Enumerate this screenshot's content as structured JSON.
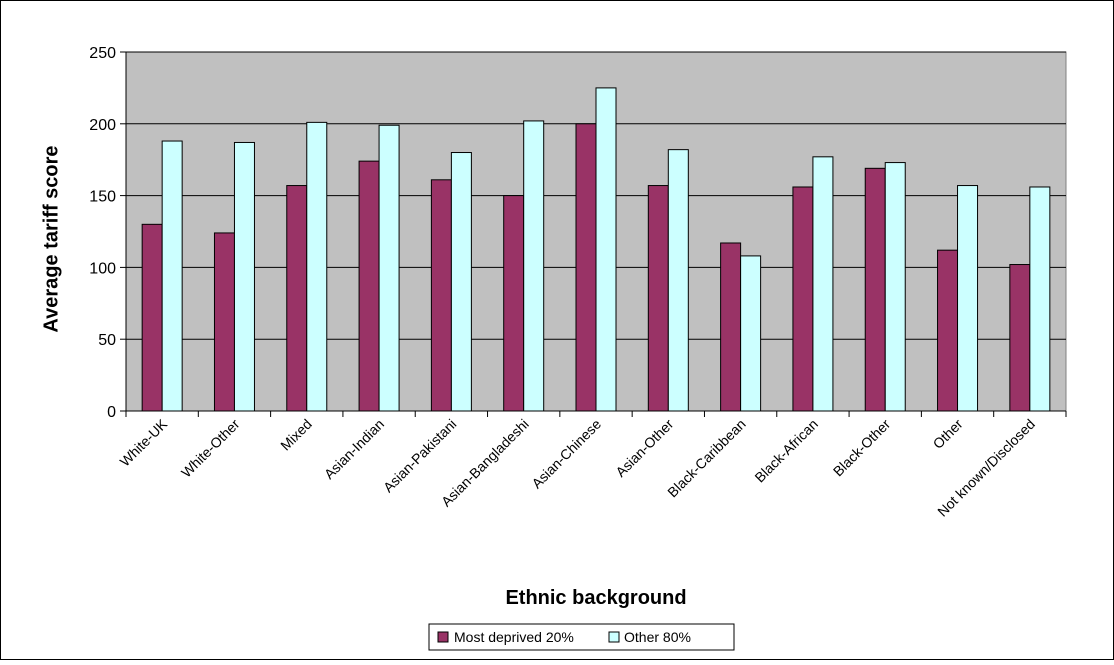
{
  "chart_data": {
    "type": "bar",
    "title": "",
    "xlabel": "Ethnic background",
    "ylabel": "Average tariff score",
    "ylim": [
      0,
      250
    ],
    "yticks": [
      0,
      50,
      100,
      150,
      200,
      250
    ],
    "grid": true,
    "legend_position": "bottom",
    "categories": [
      "White-UK",
      "White-Other",
      "Mixed",
      "Asian-Indian",
      "Asian-Pakistani",
      "Asian-Bangladeshi",
      "Asian-Chinese",
      "Asian-Other",
      "Black-Caribbean",
      "Black-African",
      "Black-Other",
      "Other",
      "Not known/Disclosed"
    ],
    "series": [
      {
        "name": "Most deprived 20%",
        "color": "#993366",
        "values": [
          130,
          124,
          157,
          174,
          161,
          150,
          200,
          157,
          117,
          156,
          169,
          112,
          102
        ]
      },
      {
        "name": "Other 80%",
        "color": "#ccffff",
        "values": [
          188,
          187,
          201,
          199,
          180,
          202,
          225,
          182,
          108,
          177,
          173,
          157,
          156
        ]
      }
    ],
    "colors": {
      "plot_background": "#c0c0c0",
      "gridline": "#000000",
      "bar_outline": "#000000"
    }
  }
}
